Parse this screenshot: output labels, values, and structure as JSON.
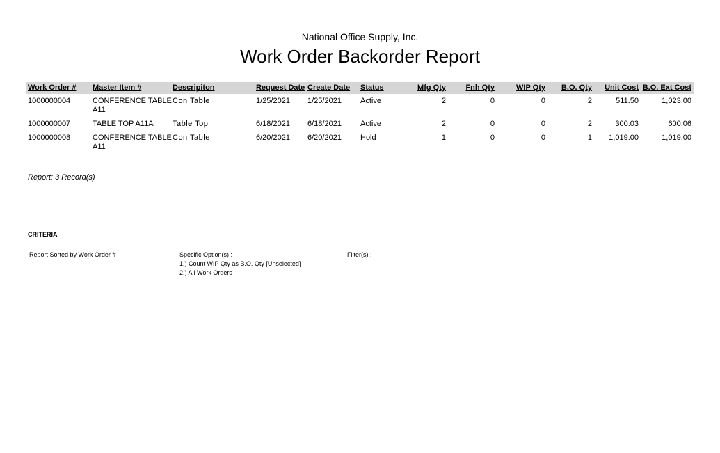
{
  "report": {
    "company": "National Office Supply, Inc.",
    "title": "Work Order Backorder Report"
  },
  "table": {
    "columns": [
      "Work Order #",
      "Master Item #",
      "Descripiton",
      "Request Date",
      "Create Date",
      "Status",
      "Mfg Qty",
      "Fnh Qty",
      "WIP Qty",
      "B.O. Qty",
      "Unit Cost",
      "B.O. Ext Cost"
    ],
    "rows": [
      [
        "1000000004",
        [
          "CONFERENCE TABLE",
          "A11"
        ],
        "Con Table",
        "1/25/2021",
        "1/25/2021",
        "Active",
        "2",
        "0",
        "0",
        "2",
        "511.50",
        "1,023.00"
      ],
      [
        "1000000007",
        [
          "TABLE TOP A11A"
        ],
        "Table Top",
        "6/18/2021",
        "6/18/2021",
        "Active",
        "2",
        "0",
        "0",
        "2",
        "300.03",
        "600.06"
      ],
      [
        "1000000008",
        [
          "CONFERENCE TABLE",
          "A11"
        ],
        "Con Table",
        "6/20/2021",
        "6/20/2021",
        "Hold",
        "1",
        "0",
        "0",
        "1",
        "1,019.00",
        "1,019.00"
      ]
    ]
  },
  "summary": "Report: 3 Record(s)",
  "criteria": {
    "heading": "CRITERIA",
    "sorted": "Report Sorted by Work Order #",
    "options_label": "Specific Option(s) :",
    "options": [
      "1.) Count WIP Qty as B.O. Qty [Unselected]",
      "2.) All Work Orders"
    ],
    "filters_label": "Filter(s) :"
  }
}
